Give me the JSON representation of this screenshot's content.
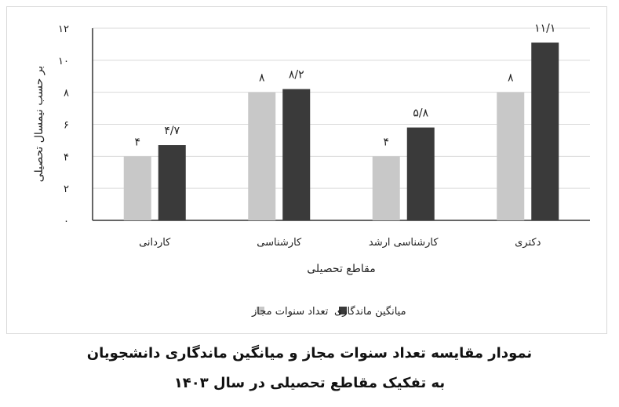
{
  "chart_data": {
    "type": "bar",
    "categories": [
      "کاردانی",
      "کارشناسی",
      "کارشناسی ارشد",
      "دکتری"
    ],
    "series": [
      {
        "name": "تعداد سنوات مجاز",
        "values": [
          4,
          8,
          4,
          8
        ],
        "labels": [
          "۴",
          "۸",
          "۴",
          "۸"
        ],
        "color": "#c8c8c8"
      },
      {
        "name": "میانگین ماندگاری",
        "values": [
          4.7,
          8.2,
          5.8,
          11.1
        ],
        "labels": [
          "۴/۷",
          "۸/۲",
          "۵/۸",
          "۱۱/۱"
        ],
        "color": "#3a3a3a"
      }
    ],
    "xlabel": "مقاطع تحصیلی",
    "ylabel": "بر حسب نیمسال تحصیلی",
    "ylim": [
      0,
      12
    ],
    "yticks": [
      0,
      2,
      4,
      6,
      8,
      10,
      12
    ],
    "ytick_labels": [
      "۰",
      "۲",
      "۴",
      "۶",
      "۸",
      "۱۰",
      "۱۲"
    ],
    "grid": true,
    "legend": "bottom"
  },
  "caption": {
    "line1": "نمودار مقایسه تعداد سنوات مجاز و میانگین ماندگاری دانشجویان",
    "line2": "به تفکیک مقاطع تحصیلی در سال ۱۴۰۳"
  }
}
